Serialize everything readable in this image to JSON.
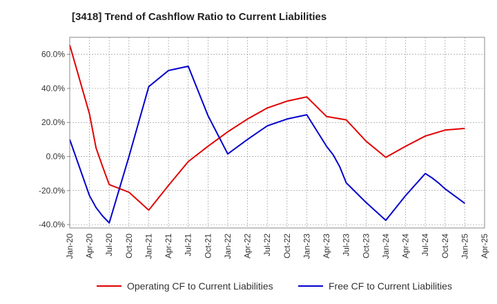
{
  "chart_data": {
    "type": "line",
    "title": "[3418]  Trend of Cashflow Ratio to Current Liabilities",
    "x": [
      "Jan-20",
      "Apr-20",
      "Jul-20",
      "Oct-20",
      "Jan-21",
      "Apr-21",
      "Jul-21",
      "Oct-21",
      "Jan-22",
      "Apr-22",
      "Jul-22",
      "Oct-22",
      "Jan-23",
      "Apr-23",
      "Jul-23",
      "Oct-23",
      "Jan-24",
      "Apr-24",
      "Jul-24",
      "Oct-24",
      "Jan-25",
      "Apr-25"
    ],
    "xlabel": "",
    "ylabel": "",
    "ylim": [
      -42,
      70
    ],
    "yticks": [
      -40,
      -20,
      0,
      20,
      40,
      60
    ],
    "ytick_labels": [
      "-40.0%",
      "-20.0%",
      "0.0%",
      "20.0%",
      "40.0%",
      "60.0%"
    ],
    "grid": true,
    "legend_position": "bottom",
    "series": [
      {
        "name": "Operating CF to Current Liabilities",
        "color": "#e00000",
        "x": [
          "Jan-20",
          "Apr-20",
          "May-20",
          "Jun-20",
          "Jul-20",
          "Oct-20",
          "Jan-21",
          "Apr-21",
          "Jul-21",
          "Oct-21",
          "Jan-22",
          "Apr-22",
          "Jul-22",
          "Oct-22",
          "Jan-23",
          "Apr-23",
          "Jul-23",
          "Oct-23",
          "Jan-24",
          "Apr-24",
          "Jul-24",
          "Oct-24",
          "Jan-25"
        ],
        "values": [
          65.5,
          25,
          5,
          -6,
          -16.5,
          -21,
          -31.5,
          -17,
          -3,
          6,
          14.5,
          22,
          28.5,
          32.5,
          35,
          23.5,
          21.5,
          9,
          -0.5,
          6,
          12,
          15.5,
          16.5
        ]
      },
      {
        "name": "Free CF to Current Liabilities",
        "color": "#0000cc",
        "x": [
          "Jan-20",
          "Apr-20",
          "May-20",
          "Jun-20",
          "Jul-20",
          "Oct-20",
          "Jan-21",
          "Apr-21",
          "Jul-21",
          "Oct-21",
          "Jan-22",
          "Apr-22",
          "Jul-22",
          "Oct-22",
          "Jan-23",
          "Apr-23",
          "May-23",
          "Jun-23",
          "Jul-23",
          "Oct-23",
          "Jan-24",
          "Apr-24",
          "Jul-24",
          "Aug-24",
          "Sep-24",
          "Oct-24",
          "Jan-25"
        ],
        "values": [
          10,
          -23,
          -30,
          -35,
          -39,
          0,
          41,
          50.5,
          53,
          24,
          1.5,
          10,
          18,
          22,
          24.5,
          6,
          1,
          -6,
          -15.5,
          -27,
          -37.5,
          -23,
          -10,
          -12.5,
          -15.5,
          -19,
          -27.5
        ]
      }
    ]
  }
}
